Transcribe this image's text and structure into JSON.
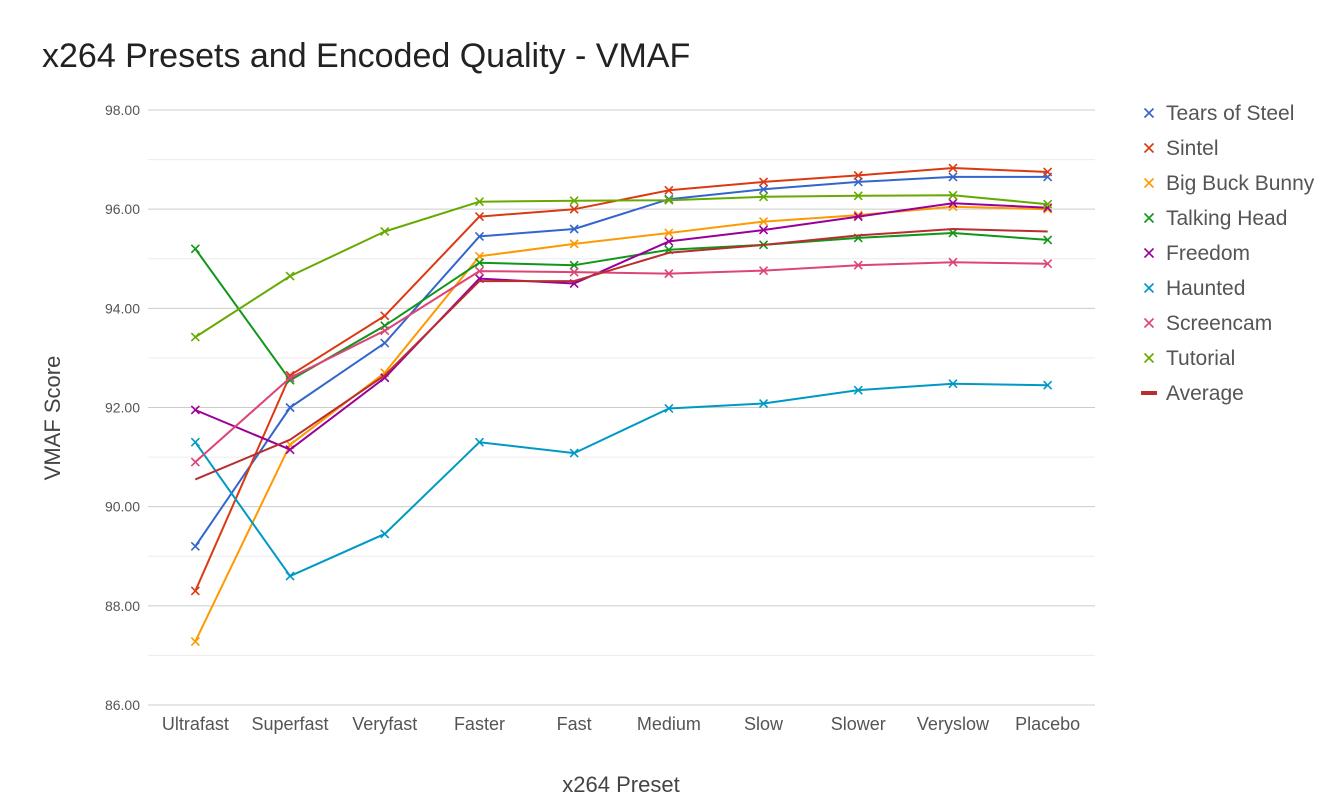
{
  "chart_data": {
    "type": "line",
    "title": "x264 Presets and Encoded Quality - VMAF",
    "xlabel": "x264 Preset",
    "ylabel": "VMAF Score",
    "ylim": [
      86,
      98
    ],
    "y_ticks": [
      "86.00",
      "88.00",
      "90.00",
      "92.00",
      "94.00",
      "96.00",
      "98.00"
    ],
    "grid": true,
    "legend_position": "right",
    "categories": [
      "Ultrafast",
      "Superfast",
      "Veryfast",
      "Faster",
      "Fast",
      "Medium",
      "Slow",
      "Slower",
      "Veryslow",
      "Placebo"
    ],
    "series": [
      {
        "name": "Tears of Steel",
        "color": "#3366cc",
        "marker": "x",
        "values": [
          89.2,
          92.0,
          93.3,
          95.45,
          95.6,
          96.2,
          96.4,
          96.55,
          96.65,
          96.65
        ]
      },
      {
        "name": "Sintel",
        "color": "#dc3912",
        "marker": "x",
        "values": [
          88.3,
          92.65,
          93.85,
          95.85,
          96.0,
          96.38,
          96.55,
          96.68,
          96.83,
          96.75
        ]
      },
      {
        "name": "Big Buck Bunny",
        "color": "#ff9900",
        "marker": "x",
        "values": [
          87.28,
          91.25,
          92.7,
          95.05,
          95.3,
          95.52,
          95.75,
          95.88,
          96.05,
          96.0
        ]
      },
      {
        "name": "Talking Head",
        "color": "#109618",
        "marker": "x",
        "values": [
          95.2,
          92.55,
          93.65,
          94.92,
          94.87,
          95.18,
          95.28,
          95.42,
          95.52,
          95.38
        ]
      },
      {
        "name": "Freedom",
        "color": "#990099",
        "marker": "x",
        "values": [
          91.95,
          91.15,
          92.6,
          94.6,
          94.5,
          95.35,
          95.58,
          95.85,
          96.12,
          96.03
        ]
      },
      {
        "name": "Haunted",
        "color": "#0099c6",
        "marker": "x",
        "values": [
          91.3,
          88.6,
          89.45,
          91.3,
          91.08,
          91.98,
          92.08,
          92.35,
          92.48,
          92.45
        ]
      },
      {
        "name": "Screencam",
        "color": "#dd4477",
        "marker": "x",
        "values": [
          90.9,
          92.6,
          93.55,
          94.75,
          94.73,
          94.7,
          94.76,
          94.87,
          94.93,
          94.9
        ]
      },
      {
        "name": "Tutorial",
        "color": "#66aa00",
        "marker": "x",
        "values": [
          93.42,
          94.65,
          95.55,
          96.15,
          96.17,
          96.18,
          96.25,
          96.27,
          96.28,
          96.1
        ]
      },
      {
        "name": "Average",
        "color": "#b82e2e",
        "marker": "none",
        "values": [
          90.55,
          91.35,
          92.65,
          94.55,
          94.55,
          95.12,
          95.28,
          95.47,
          95.6,
          95.55
        ]
      }
    ]
  }
}
